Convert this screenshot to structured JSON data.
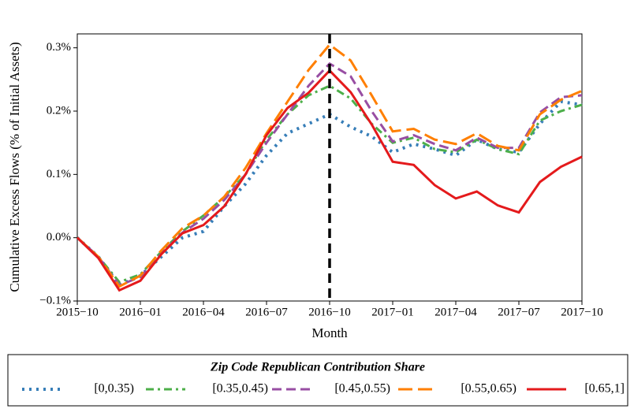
{
  "chart_data": {
    "type": "line",
    "y_label": "Cumulative Excess Flows (% of Initial Assets)",
    "x_label": "Month",
    "legend_title": "Zip Code Republican Contribution Share",
    "x": [
      "2015-10",
      "2015-11",
      "2015-12",
      "2016-01",
      "2016-02",
      "2016-03",
      "2016-04",
      "2016-05",
      "2016-06",
      "2016-07",
      "2016-08",
      "2016-09",
      "2016-10",
      "2016-11",
      "2016-12",
      "2017-01",
      "2017-02",
      "2017-03",
      "2017-04",
      "2017-05",
      "2017-06",
      "2017-07",
      "2017-08",
      "2017-09",
      "2017-10"
    ],
    "xticks": [
      {
        "value": "2015-10",
        "label": "2015−10"
      },
      {
        "value": "2016-01",
        "label": "2016−01"
      },
      {
        "value": "2016-04",
        "label": "2016−04"
      },
      {
        "value": "2016-07",
        "label": "2016−07"
      },
      {
        "value": "2016-10",
        "label": "2016−10"
      },
      {
        "value": "2017-01",
        "label": "2017−01"
      },
      {
        "value": "2017-04",
        "label": "2017−04"
      },
      {
        "value": "2017-07",
        "label": "2017−07"
      },
      {
        "value": "2017-10",
        "label": "2017−10"
      }
    ],
    "vline": "2016-10",
    "ylim": [
      -0.1,
      0.322
    ],
    "yticks": [
      {
        "value": -0.1,
        "label": "−0.1%"
      },
      {
        "value": 0,
        "label": "0.0%"
      },
      {
        "value": 0.1,
        "label": "0.1%"
      },
      {
        "value": 0.2,
        "label": "0.2%"
      },
      {
        "value": 0.3,
        "label": "0.3%"
      }
    ],
    "series": [
      {
        "name": "[0,0.35)",
        "color": "#377eb8",
        "dash": "dotted",
        "values": [
          0,
          -0.03,
          -0.075,
          -0.06,
          -0.03,
          0.0,
          0.01,
          0.05,
          0.085,
          0.13,
          0.165,
          0.18,
          0.195,
          0.175,
          0.16,
          0.135,
          0.148,
          0.14,
          0.13,
          0.155,
          0.14,
          0.135,
          0.18,
          0.215,
          0.21
        ]
      },
      {
        "name": "[0.35,0.45)",
        "color": "#4daf4a",
        "dash": "dashdot",
        "values": [
          0,
          -0.03,
          -0.07,
          -0.058,
          -0.022,
          0.01,
          0.035,
          0.065,
          0.1,
          0.155,
          0.195,
          0.225,
          0.24,
          0.22,
          0.18,
          0.15,
          0.158,
          0.14,
          0.135,
          0.155,
          0.14,
          0.132,
          0.185,
          0.2,
          0.21
        ]
      },
      {
        "name": "[0.45,0.55)",
        "color": "#984ea3",
        "dash": "dashed",
        "values": [
          0,
          -0.03,
          -0.075,
          -0.062,
          -0.025,
          0.008,
          0.03,
          0.06,
          0.1,
          0.15,
          0.195,
          0.24,
          0.275,
          0.255,
          0.2,
          0.152,
          0.162,
          0.148,
          0.138,
          0.158,
          0.142,
          0.142,
          0.198,
          0.222,
          0.225
        ]
      },
      {
        "name": "[0.55,0.65)",
        "color": "#ff7f00",
        "dash": "longdash",
        "values": [
          0,
          -0.03,
          -0.077,
          -0.06,
          -0.02,
          0.015,
          0.035,
          0.065,
          0.11,
          0.165,
          0.215,
          0.265,
          0.305,
          0.28,
          0.225,
          0.168,
          0.172,
          0.155,
          0.148,
          0.165,
          0.145,
          0.138,
          0.195,
          0.218,
          0.232
        ]
      },
      {
        "name": "[0.65,1]",
        "color": "#e41a1c",
        "dash": "solid",
        "values": [
          0,
          -0.032,
          -0.083,
          -0.068,
          -0.026,
          0.007,
          0.02,
          0.05,
          0.1,
          0.162,
          0.205,
          0.229,
          0.264,
          0.23,
          0.179,
          0.12,
          0.115,
          0.083,
          0.062,
          0.073,
          0.051,
          0.04,
          0.088,
          0.112,
          0.128
        ]
      }
    ]
  }
}
